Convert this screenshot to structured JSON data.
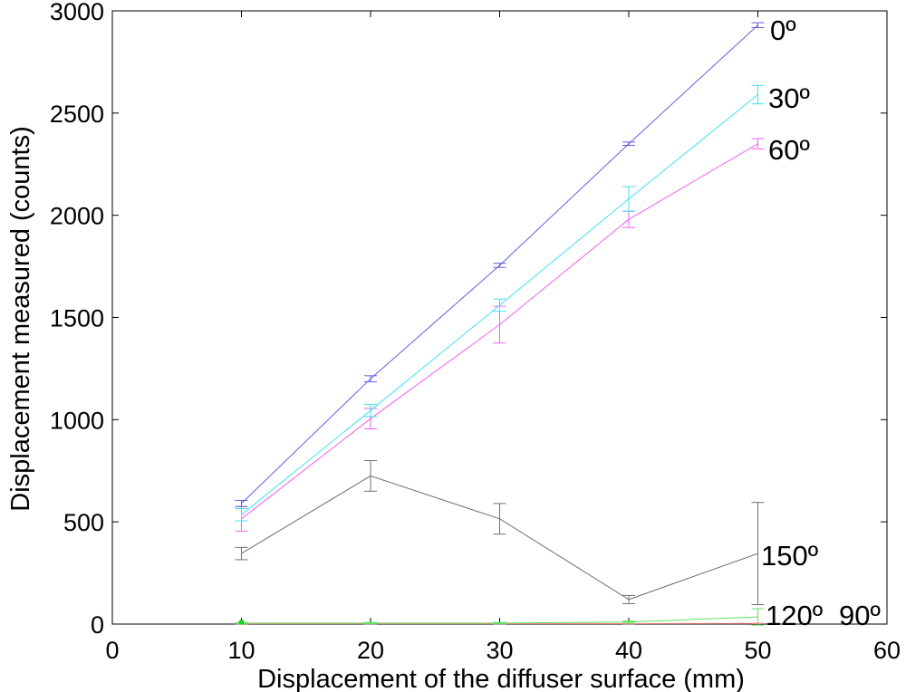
{
  "chart_data": {
    "type": "line",
    "title": "",
    "xlabel": "Displacement of the diffuser surface (mm)",
    "ylabel": "Displacement measured (counts)",
    "xlim": [
      0,
      60
    ],
    "ylim": [
      0,
      3000
    ],
    "xticks": [
      "0",
      "10",
      "20",
      "30",
      "40",
      "50",
      "60"
    ],
    "yticks": [
      "0",
      "500",
      "1000",
      "1500",
      "2000",
      "2500",
      "3000"
    ],
    "grid": false,
    "legend": "none",
    "x": [
      10,
      20,
      30,
      40,
      50
    ],
    "series": [
      {
        "name": "0º",
        "color": "#6060e0",
        "values": [
          590,
          1200,
          1755,
          2350,
          2930
        ],
        "errors": [
          15,
          15,
          10,
          8,
          12
        ]
      },
      {
        "name": "30º",
        "color": "#40e0f0",
        "values": [
          535,
          1045,
          1560,
          2080,
          2590
        ],
        "errors": [
          30,
          30,
          30,
          60,
          45
        ]
      },
      {
        "name": "60º",
        "color": "#f060f0",
        "values": [
          515,
          1005,
          1465,
          1980,
          2350
        ],
        "errors": [
          60,
          50,
          90,
          40,
          25
        ]
      },
      {
        "name": "150º",
        "color": "#707070",
        "values": [
          345,
          725,
          515,
          120,
          345
        ],
        "errors": [
          30,
          75,
          75,
          20,
          250
        ]
      },
      {
        "name": "120º",
        "color": "#60e060",
        "values": [
          5,
          5,
          5,
          10,
          35
        ],
        "errors": [
          3,
          3,
          3,
          5,
          40
        ]
      },
      {
        "name": "90º",
        "color": "#f08080",
        "values": [
          2,
          2,
          2,
          2,
          3
        ],
        "errors": [
          1,
          1,
          1,
          1,
          1
        ]
      }
    ]
  }
}
